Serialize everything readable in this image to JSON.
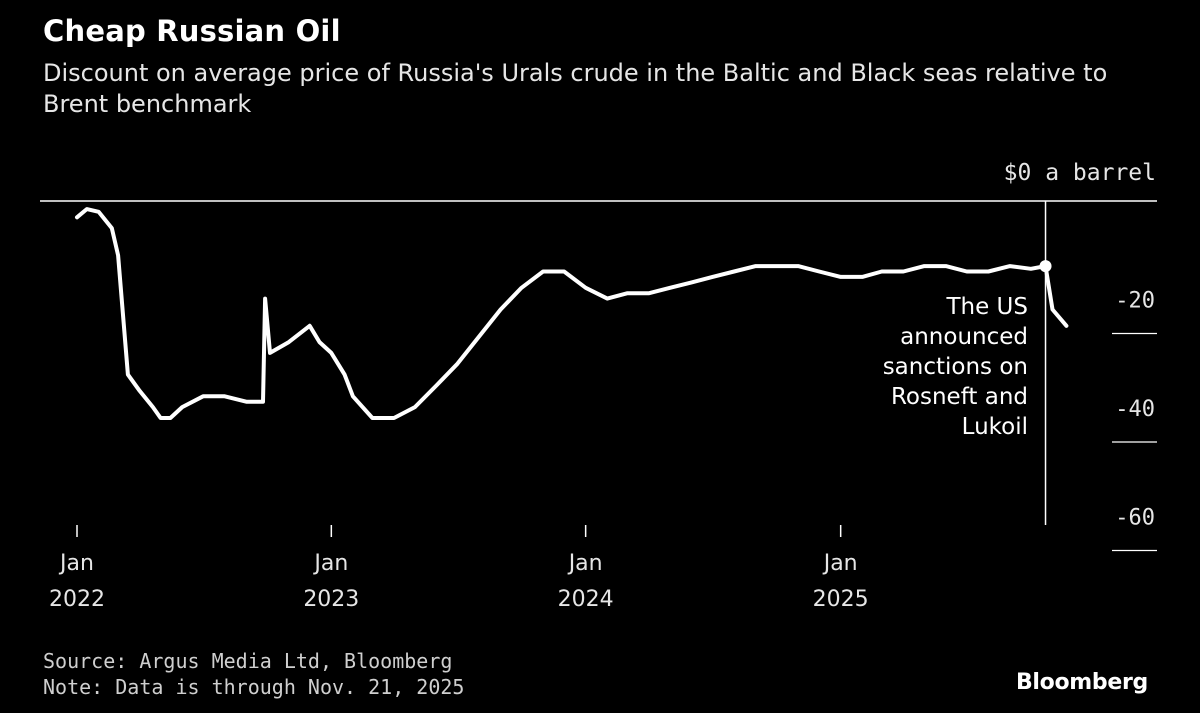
{
  "header": {
    "title": "Cheap Russian Oil",
    "subtitle": "Discount on average price of Russia's Urals crude in the Baltic and Black seas relative to Brent benchmark"
  },
  "footer": {
    "source": "Source: Argus Media Ltd, Bloomberg",
    "note": "Note: Data is through Nov. 21, 2025",
    "brand": "Bloomberg"
  },
  "colors": {
    "background": "#000000",
    "line": "#ffffff",
    "text": "#ffffff",
    "muted": "#cfcfcf"
  },
  "chart_data": {
    "type": "line",
    "title": "Cheap Russian Oil",
    "subtitle": "Discount on average price of Russia's Urals crude in the Baltic and Black seas relative to Brent benchmark",
    "ylabel": "",
    "xlabel": "",
    "unit_label": "$0 a barrel",
    "y_ticks": [
      0,
      -20,
      -40,
      -60
    ],
    "y_tick_labels": [
      "$0 a barrel",
      "-20",
      "-40",
      "-60"
    ],
    "ylim": [
      -62,
      0
    ],
    "xlim": [
      "2022-01-01",
      "2025-12-31"
    ],
    "x_ticks": [
      {
        "date": "2022-01-01",
        "label_top": "Jan",
        "label_bottom": "2022"
      },
      {
        "date": "2023-01-01",
        "label_top": "Jan",
        "label_bottom": "2023"
      },
      {
        "date": "2024-01-01",
        "label_top": "Jan",
        "label_bottom": "2024"
      },
      {
        "date": "2025-01-01",
        "label_top": "Jan",
        "label_bottom": "2025"
      }
    ],
    "grid": false,
    "legend": "none",
    "series": [
      {
        "points": [
          [
            "2022-01-01",
            -3
          ],
          [
            "2022-01-15",
            -1.5
          ],
          [
            "2022-02-01",
            -2
          ],
          [
            "2022-02-20",
            -5
          ],
          [
            "2022-03-01",
            -10
          ],
          [
            "2022-03-15",
            -32
          ],
          [
            "2022-04-01",
            -35
          ],
          [
            "2022-04-20",
            -38
          ],
          [
            "2022-05-01",
            -40
          ],
          [
            "2022-05-15",
            -40
          ],
          [
            "2022-06-01",
            -38
          ],
          [
            "2022-07-01",
            -36
          ],
          [
            "2022-08-01",
            -36
          ],
          [
            "2022-09-01",
            -37
          ],
          [
            "2022-09-25",
            -37
          ],
          [
            "2022-09-28",
            -18
          ],
          [
            "2022-10-05",
            -28
          ],
          [
            "2022-11-01",
            -26
          ],
          [
            "2022-12-01",
            -23
          ],
          [
            "2022-12-15",
            -26
          ],
          [
            "2023-01-01",
            -28
          ],
          [
            "2023-01-20",
            -32
          ],
          [
            "2023-02-01",
            -36
          ],
          [
            "2023-03-01",
            -40
          ],
          [
            "2023-04-01",
            -40
          ],
          [
            "2023-05-01",
            -38
          ],
          [
            "2023-06-01",
            -34
          ],
          [
            "2023-07-01",
            -30
          ],
          [
            "2023-08-01",
            -25
          ],
          [
            "2023-09-01",
            -20
          ],
          [
            "2023-10-01",
            -16
          ],
          [
            "2023-11-01",
            -13
          ],
          [
            "2023-12-01",
            -13
          ],
          [
            "2024-01-01",
            -16
          ],
          [
            "2024-02-01",
            -18
          ],
          [
            "2024-03-01",
            -17
          ],
          [
            "2024-04-01",
            -17
          ],
          [
            "2024-05-01",
            -16
          ],
          [
            "2024-06-01",
            -15
          ],
          [
            "2024-07-01",
            -14
          ],
          [
            "2024-08-01",
            -13
          ],
          [
            "2024-09-01",
            -12
          ],
          [
            "2024-10-01",
            -12
          ],
          [
            "2024-11-01",
            -12
          ],
          [
            "2024-12-01",
            -13
          ],
          [
            "2025-01-01",
            -14
          ],
          [
            "2025-02-01",
            -14
          ],
          [
            "2025-03-01",
            -13
          ],
          [
            "2025-04-01",
            -13
          ],
          [
            "2025-05-01",
            -12
          ],
          [
            "2025-06-01",
            -12
          ],
          [
            "2025-07-01",
            -13
          ],
          [
            "2025-08-01",
            -13
          ],
          [
            "2025-09-01",
            -12
          ],
          [
            "2025-10-01",
            -12.5
          ],
          [
            "2025-10-22",
            -12
          ],
          [
            "2025-11-01",
            -20
          ],
          [
            "2025-11-21",
            -23
          ]
        ]
      }
    ],
    "annotations": [
      {
        "date": "2025-10-22",
        "value": -12,
        "text": "The US announced sanctions on Rosneft and Lukoil"
      }
    ]
  }
}
